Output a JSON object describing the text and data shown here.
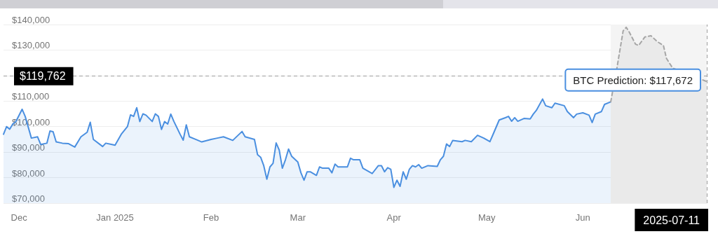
{
  "chart_data": {
    "type": "area",
    "grid": "y",
    "xlim": [
      "2024-11-26",
      "2025-07-11"
    ],
    "xticks": [
      {
        "value": "2024-12-01",
        "label": "Dec"
      },
      {
        "value": "2025-01-01",
        "label": "Jan 2025"
      },
      {
        "value": "2025-02-01",
        "label": "Feb"
      },
      {
        "value": "2025-03-01",
        "label": "Mar"
      },
      {
        "value": "2025-04-01",
        "label": "Apr"
      },
      {
        "value": "2025-05-01",
        "label": "May"
      },
      {
        "value": "2025-06-01",
        "label": "Jun"
      }
    ],
    "ylim": [
      70000,
      140000
    ],
    "yticks": [
      {
        "value": 70000,
        "label": "$70,000"
      },
      {
        "value": 80000,
        "label": "$80,000"
      },
      {
        "value": 90000,
        "label": "$90,000"
      },
      {
        "value": 100000,
        "label": "$100,000"
      },
      {
        "value": 110000,
        "label": "$110,000"
      },
      {
        "value": 120000,
        "label": null
      },
      {
        "value": 130000,
        "label": "$130,000"
      },
      {
        "value": 140000,
        "label": "$140,000"
      }
    ],
    "series": [
      {
        "color": "#4a8fe0",
        "line_style": "solid",
        "x": [
          "2024-11-26",
          "2024-11-27",
          "2024-11-28",
          "2024-11-29",
          "2024-11-30",
          "2024-12-02",
          "2024-12-03",
          "2024-12-05",
          "2024-12-07",
          "2024-12-08",
          "2024-12-10",
          "2024-12-11",
          "2024-12-12",
          "2024-12-13",
          "2024-12-15",
          "2024-12-17",
          "2024-12-19",
          "2024-12-21",
          "2024-12-23",
          "2024-12-24",
          "2024-12-25",
          "2024-12-28",
          "2024-12-29",
          "2024-12-31",
          "2025-01-01",
          "2025-01-03",
          "2025-01-05",
          "2025-01-06",
          "2025-01-07",
          "2025-01-08",
          "2025-01-09",
          "2025-01-10",
          "2025-01-11",
          "2025-01-13",
          "2025-01-14",
          "2025-01-15",
          "2025-01-16",
          "2025-01-17",
          "2025-01-18",
          "2025-01-19",
          "2025-01-20",
          "2025-01-22",
          "2025-01-23",
          "2025-01-24",
          "2025-01-25",
          "2025-01-27",
          "2025-01-29",
          "2025-02-01",
          "2025-02-03",
          "2025-02-05",
          "2025-02-08",
          "2025-02-11",
          "2025-02-12",
          "2025-02-15",
          "2025-02-16",
          "2025-02-17",
          "2025-02-18",
          "2025-02-19",
          "2025-02-20",
          "2025-02-21",
          "2025-02-22",
          "2025-02-23",
          "2025-02-24",
          "2025-02-25",
          "2025-02-26",
          "2025-02-27",
          "2025-03-01",
          "2025-03-02",
          "2025-03-03",
          "2025-03-04",
          "2025-03-05",
          "2025-03-07",
          "2025-03-08",
          "2025-03-09",
          "2025-03-11",
          "2025-03-12",
          "2025-03-13",
          "2025-03-14",
          "2025-03-17",
          "2025-03-18",
          "2025-03-19",
          "2025-03-21",
          "2025-03-22",
          "2025-03-24",
          "2025-03-25",
          "2025-03-27",
          "2025-03-28",
          "2025-03-29",
          "2025-03-30",
          "2025-03-31",
          "2025-04-01",
          "2025-04-02",
          "2025-04-03",
          "2025-04-04",
          "2025-04-05",
          "2025-04-06",
          "2025-04-07",
          "2025-04-08",
          "2025-04-09",
          "2025-04-10",
          "2025-04-12",
          "2025-04-15",
          "2025-04-16",
          "2025-04-17",
          "2025-04-18",
          "2025-04-19",
          "2025-04-20",
          "2025-04-23",
          "2025-04-24",
          "2025-04-26",
          "2025-04-28",
          "2025-04-30",
          "2025-05-02",
          "2025-05-03",
          "2025-05-05",
          "2025-05-07",
          "2025-05-08",
          "2025-05-09",
          "2025-05-10",
          "2025-05-11",
          "2025-05-13",
          "2025-05-15",
          "2025-05-16",
          "2025-05-17",
          "2025-05-19",
          "2025-05-20",
          "2025-05-22",
          "2025-05-23",
          "2025-05-26",
          "2025-05-27",
          "2025-05-29",
          "2025-05-30",
          "2025-06-01",
          "2025-06-03",
          "2025-06-04",
          "2025-06-05",
          "2025-06-07",
          "2025-06-08",
          "2025-06-10"
        ],
        "values": [
          97000,
          100000,
          99000,
          101000,
          102000,
          106800,
          104000,
          95500,
          96000,
          93000,
          93500,
          98300,
          98000,
          94000,
          93500,
          93300,
          92000,
          96000,
          97800,
          101700,
          95000,
          92200,
          93500,
          93000,
          92700,
          97000,
          100000,
          104600,
          104000,
          107400,
          102000,
          105000,
          104500,
          102000,
          105000,
          104000,
          98900,
          102000,
          101000,
          104900,
          102000,
          97000,
          94700,
          100700,
          96000,
          95000,
          94000,
          95000,
          95500,
          96000,
          94600,
          98100,
          96000,
          95000,
          89000,
          88000,
          84700,
          79400,
          84200,
          85600,
          93600,
          90800,
          83700,
          87000,
          91200,
          88400,
          86100,
          81900,
          79000,
          82300,
          82300,
          80900,
          84200,
          83700,
          83700,
          81900,
          85300,
          84200,
          84200,
          87600,
          87000,
          87000,
          83700,
          82300,
          81600,
          84700,
          84700,
          82300,
          83900,
          83300,
          76200,
          79000,
          76600,
          82300,
          79400,
          83300,
          84700,
          84200,
          85100,
          83700,
          84700,
          84400,
          87000,
          88400,
          93200,
          92200,
          94600,
          94100,
          94600,
          94100,
          96600,
          95500,
          94100,
          96900,
          102600,
          103500,
          104000,
          102100,
          103500,
          102100,
          103200,
          103000,
          104900,
          106400,
          110800,
          108200,
          107400,
          109200,
          108200,
          105900,
          103500,
          104900,
          105400,
          104500,
          101600,
          104900,
          105900,
          108700,
          109700
        ]
      },
      {
        "color": "#a6a6a6",
        "line_style": "dashed",
        "x": [
          "2025-06-10",
          "2025-06-12",
          "2025-06-14",
          "2025-06-15",
          "2025-06-16",
          "2025-06-18",
          "2025-06-19",
          "2025-06-21",
          "2025-06-23",
          "2025-06-25",
          "2025-06-27",
          "2025-06-28",
          "2025-06-30",
          "2025-07-11"
        ],
        "values": [
          109700,
          123000,
          137500,
          138900,
          137000,
          132300,
          131800,
          135100,
          135600,
          133300,
          131800,
          126700,
          122900,
          117672
        ]
      }
    ],
    "ref_lines": [
      {
        "axis": "y",
        "value": 119762,
        "label": "$119,762",
        "color": "#9e9e9e",
        "line_style": "dashed"
      },
      {
        "axis": "x",
        "value": "2025-07-11",
        "label": "2025-07-11",
        "color": "#9e9e9e",
        "line_style": "dashed"
      }
    ],
    "bands": [
      {
        "axis": "x",
        "from": "2025-06-10",
        "to": "2025-07-11",
        "color": "#f4f4f4"
      }
    ],
    "annotations": [
      {
        "text": "BTC Prediction: $117,672",
        "x": "2025-07-11",
        "y": 117672
      }
    ]
  }
}
